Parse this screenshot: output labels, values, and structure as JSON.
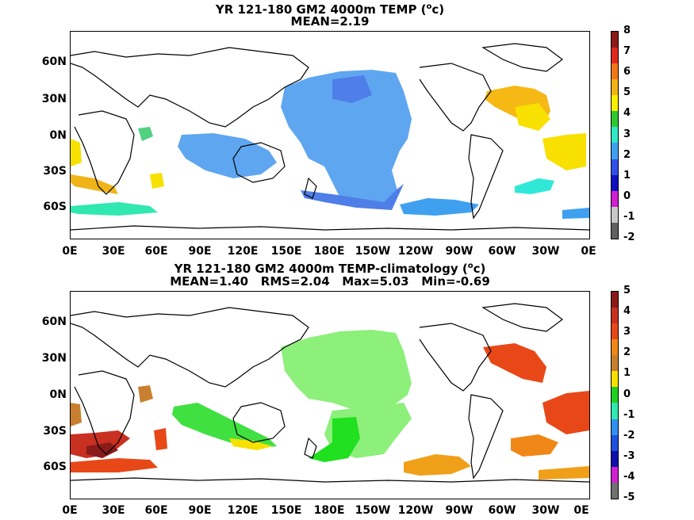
{
  "top_map": {
    "title_line1": "YR 121-180 GM2 4000m TEMP (",
    "title_sup": "o",
    "title_unit_end": "c)",
    "title_line2": "MEAN=2.19",
    "lat_labels": [
      "60N",
      "30N",
      "0N",
      "30S",
      "60S"
    ],
    "lon_labels": [
      "0E",
      "30E",
      "60E",
      "90E",
      "120E",
      "150E",
      "180E",
      "150W",
      "120W",
      "90W",
      "60W",
      "30W",
      "0E"
    ],
    "colorbar_labels": [
      "8",
      "7",
      "6",
      "5",
      "4",
      "3",
      "2",
      "1",
      "0",
      "-1",
      "-2"
    ],
    "colorbar_colors": [
      "#8b1a1a",
      "#e0281e",
      "#f07818",
      "#f0b418",
      "#f8f000",
      "#30c830",
      "#30e8c8",
      "#40a0f0",
      "#3050e8",
      "#1010c0",
      "#d020d0",
      "#c8c8c8",
      "#606060"
    ]
  },
  "bottom_map": {
    "title_line1": "YR 121-180 GM2 4000m TEMP-climatology (",
    "title_sup": "o",
    "title_unit_end": "c)",
    "title_line2": "MEAN=1.40   RMS=2.04   Max=5.03   Min=-0.69",
    "lat_labels": [
      "60N",
      "30N",
      "0N",
      "30S",
      "60S"
    ],
    "lon_labels": [
      "0E",
      "30E",
      "60E",
      "90E",
      "120E",
      "150E",
      "180E",
      "150W",
      "120W",
      "90W",
      "60W",
      "30W",
      "0E"
    ],
    "colorbar_labels": [
      "5",
      "4",
      "3",
      "2",
      "1",
      "0",
      "-1",
      "-2",
      "-3",
      "-4",
      "-5"
    ],
    "colorbar_colors": [
      "#8b1a1a",
      "#c83020",
      "#e84818",
      "#f08818",
      "#c88030",
      "#f8e000",
      "#20d020",
      "#30e8b0",
      "#3090f0",
      "#2050e0",
      "#1010b0",
      "#d020d0",
      "#707070"
    ]
  }
}
